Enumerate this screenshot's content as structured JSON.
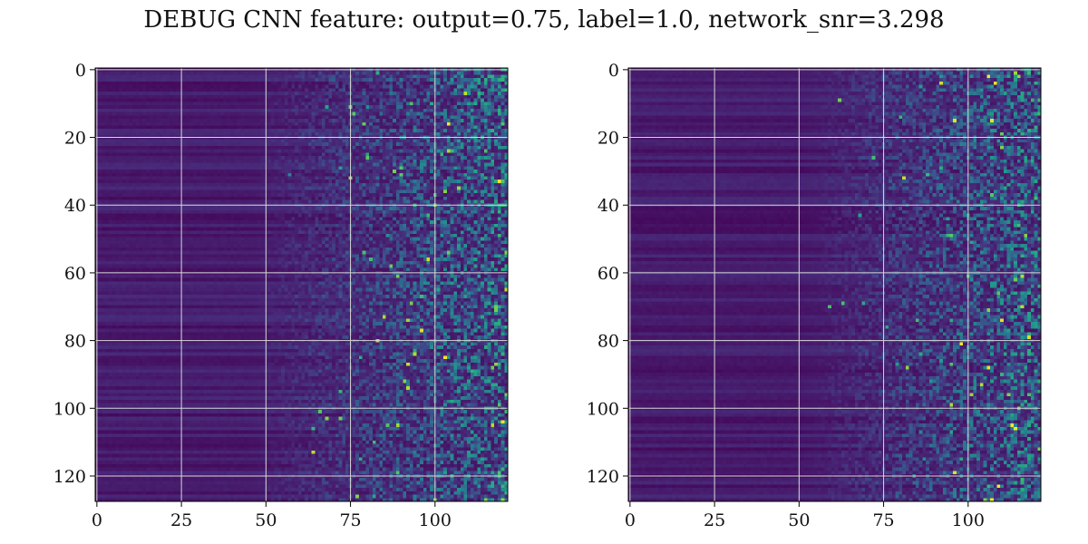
{
  "figure": {
    "title": "DEBUG CNN feature: output=0.75, label=1.0, network_snr=3.298"
  },
  "chart_data": [
    {
      "type": "heatmap",
      "title": "",
      "xlabel": "",
      "ylabel": "",
      "x_range": [
        -0.5,
        121.5
      ],
      "y_range": [
        127.5,
        -0.5
      ],
      "n_cols": 122,
      "n_rows": 128,
      "x_ticks": [
        0,
        25,
        50,
        75,
        100
      ],
      "y_ticks": [
        0,
        20,
        40,
        60,
        80,
        100,
        120
      ],
      "grid": true,
      "colormap": "viridis",
      "colormap_stops": [
        "#440154",
        "#482878",
        "#3e4989",
        "#31688e",
        "#26828e",
        "#1f9e89",
        "#35b779",
        "#6ece58",
        "#b5de2b",
        "#fde725"
      ],
      "pattern": "low uniform values on the left (columns 0-45) with faint horizontal row stripes, becoming increasingly noisy to the right with scattered bright teal/yellow pixels"
    },
    {
      "type": "heatmap",
      "title": "",
      "xlabel": "",
      "ylabel": "",
      "x_range": [
        -0.5,
        121.5
      ],
      "y_range": [
        127.5,
        -0.5
      ],
      "n_cols": 122,
      "n_rows": 128,
      "x_ticks": [
        0,
        25,
        50,
        75,
        100
      ],
      "y_ticks": [
        0,
        20,
        40,
        60,
        80,
        100,
        120
      ],
      "grid": true,
      "colormap": "viridis",
      "colormap_stops": [
        "#440154",
        "#482878",
        "#3e4989",
        "#31688e",
        "#26828e",
        "#1f9e89",
        "#35b779",
        "#6ece58",
        "#b5de2b",
        "#fde725"
      ],
      "pattern": "low uniform values on the left (columns 0-50) with faint horizontal row stripes, becoming increasingly noisy to the right with scattered bright teal/yellow pixels"
    }
  ]
}
